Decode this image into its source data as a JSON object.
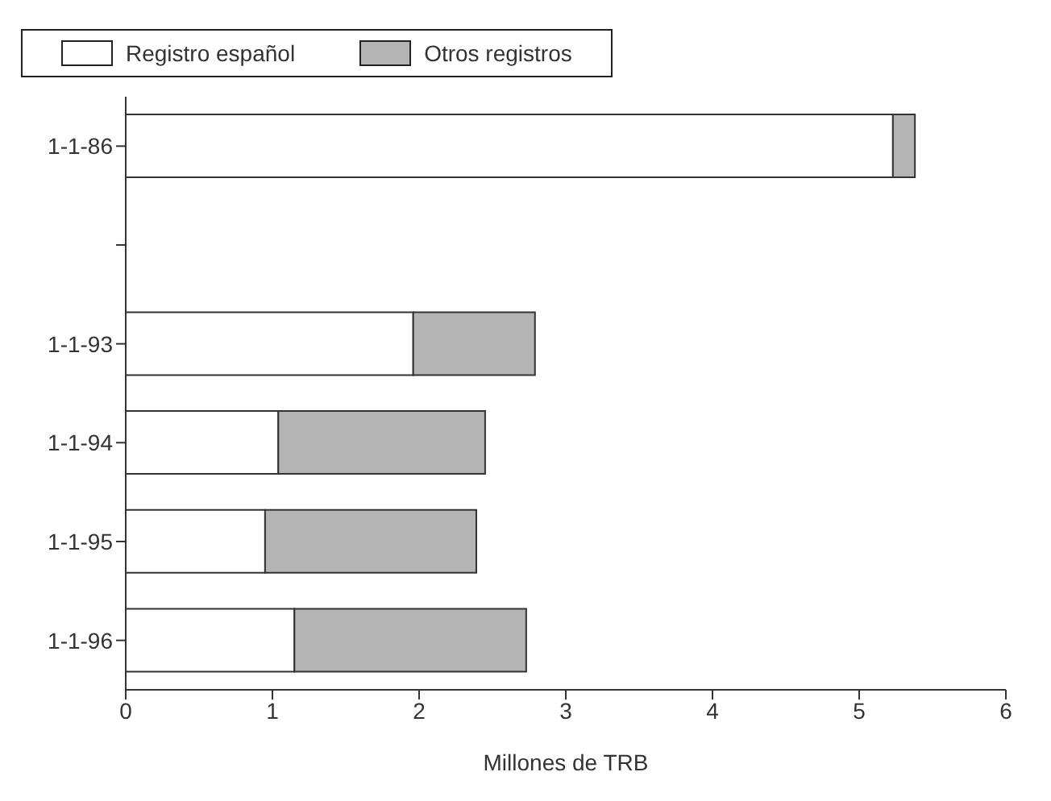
{
  "chart_data": {
    "type": "bar",
    "orientation": "horizontal",
    "stacked": true,
    "xlabel": "Millones de TRB",
    "categories": [
      "1-1-86",
      null,
      "1-1-93",
      "1-1-94",
      "1-1-95",
      "1-1-96"
    ],
    "series": [
      {
        "name": "Registro español",
        "color": "#ffffff",
        "values": [
          5.23,
          null,
          1.96,
          1.04,
          0.95,
          1.15
        ]
      },
      {
        "name": "Otros registros",
        "color": "#b4b4b4",
        "values": [
          0.15,
          null,
          0.83,
          1.41,
          1.44,
          1.58
        ]
      }
    ],
    "xlim": [
      0,
      6
    ],
    "xticks": [
      0,
      1,
      2,
      3,
      4,
      5,
      6
    ],
    "legend": "top"
  }
}
